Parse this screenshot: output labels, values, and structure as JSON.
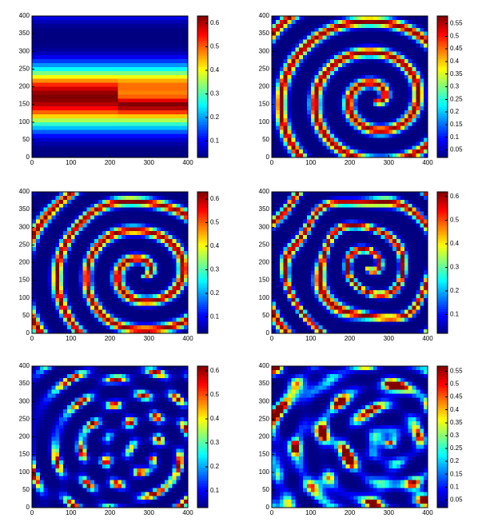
{
  "chart_data": [
    {
      "type": "heatmap",
      "colormap": "jet",
      "xlim": [
        0,
        400
      ],
      "ylim": [
        0,
        400
      ],
      "xticks": [
        0,
        100,
        200,
        300,
        400
      ],
      "yticks": [
        0,
        50,
        100,
        150,
        200,
        250,
        300,
        350,
        400
      ],
      "clim": [
        0.03,
        0.63
      ],
      "cticks": [
        0.1,
        0.2,
        0.3,
        0.4,
        0.5,
        0.6
      ]
    },
    {
      "type": "heatmap",
      "colormap": "jet",
      "xlim": [
        0,
        400
      ],
      "ylim": [
        0,
        400
      ],
      "xticks": [
        0,
        100,
        200,
        300,
        400
      ],
      "yticks": [
        0,
        50,
        100,
        150,
        200,
        250,
        300,
        350,
        400
      ],
      "clim": [
        0.02,
        0.58
      ],
      "cticks": [
        0.05,
        0.1,
        0.15,
        0.2,
        0.25,
        0.3,
        0.35,
        0.4,
        0.45,
        0.5,
        0.55
      ]
    },
    {
      "type": "heatmap",
      "colormap": "jet",
      "xlim": [
        0,
        400
      ],
      "ylim": [
        0,
        400
      ],
      "xticks": [
        0,
        100,
        200,
        300,
        400
      ],
      "yticks": [
        0,
        50,
        100,
        150,
        200,
        250,
        300,
        350,
        400
      ],
      "clim": [
        0.03,
        0.63
      ],
      "cticks": [
        0.1,
        0.2,
        0.3,
        0.4,
        0.5,
        0.6
      ]
    },
    {
      "type": "heatmap",
      "colormap": "jet",
      "xlim": [
        0,
        400
      ],
      "ylim": [
        0,
        400
      ],
      "xticks": [
        0,
        100,
        200,
        300,
        400
      ],
      "yticks": [
        0,
        50,
        100,
        150,
        200,
        250,
        300,
        350,
        400
      ],
      "clim": [
        0.02,
        0.62
      ],
      "cticks": [
        0.1,
        0.2,
        0.3,
        0.4,
        0.5,
        0.6
      ]
    },
    {
      "type": "heatmap",
      "colormap": "jet",
      "xlim": [
        0,
        400
      ],
      "ylim": [
        0,
        400
      ],
      "xticks": [
        0,
        100,
        200,
        300,
        400
      ],
      "yticks": [
        0,
        50,
        100,
        150,
        200,
        250,
        300,
        350,
        400
      ],
      "clim": [
        0.03,
        0.62
      ],
      "cticks": [
        0.1,
        0.2,
        0.3,
        0.4,
        0.5,
        0.6
      ]
    },
    {
      "type": "heatmap",
      "colormap": "jet",
      "xlim": [
        0,
        400
      ],
      "ylim": [
        0,
        400
      ],
      "xticks": [
        0,
        100,
        200,
        300,
        400
      ],
      "yticks": [
        0,
        50,
        100,
        150,
        200,
        250,
        300,
        350,
        400
      ],
      "clim": [
        0.02,
        0.57
      ],
      "cticks": [
        0.05,
        0.1,
        0.15,
        0.2,
        0.25,
        0.3,
        0.35,
        0.4,
        0.45,
        0.5,
        0.55
      ]
    }
  ]
}
